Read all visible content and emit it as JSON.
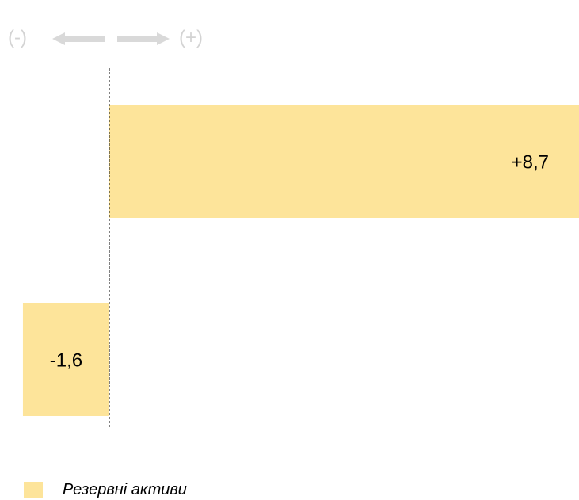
{
  "direction": {
    "negative_label": "(-)",
    "positive_label": "(+)"
  },
  "colors": {
    "bar": "#fde49a",
    "arrow": "#d9d9d9",
    "baseline": "#000000"
  },
  "chart_data": {
    "type": "bar",
    "orientation": "horizontal",
    "title": "",
    "xlabel": "",
    "ylabel": "",
    "grid": false,
    "legend_position": "bottom-left",
    "series": [
      {
        "name": "Резервні активи",
        "values": [
          8.7,
          -1.6
        ],
        "labels": [
          "+8,7",
          "-1,6"
        ]
      }
    ]
  }
}
